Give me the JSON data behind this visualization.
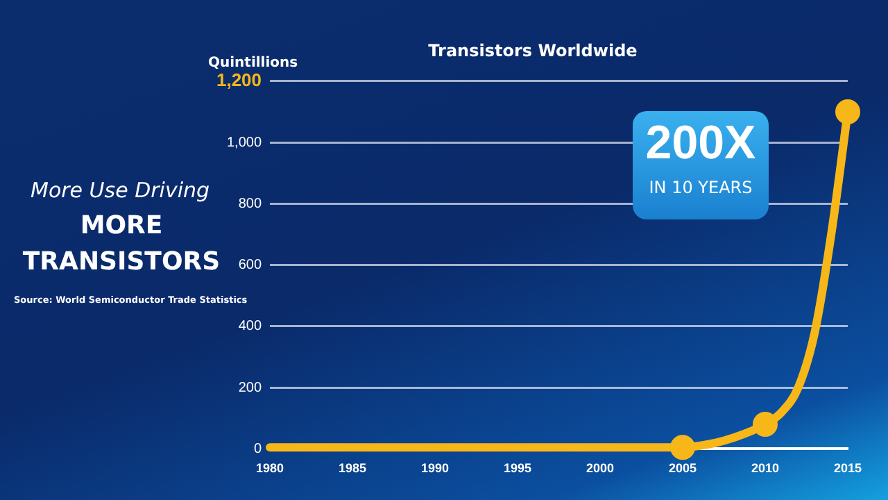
{
  "chart_data": {
    "type": "line",
    "title": "Transistors Worldwide",
    "ylabel": "Quintillions",
    "annotations": [
      "More Use Driving",
      "MORE TRANSISTORS",
      "Source: World Semiconductor Trade Statistics",
      "200X",
      "IN 10 YEARS"
    ],
    "x": [
      1980,
      1985,
      1990,
      1995,
      2000,
      2005,
      2007,
      2008,
      2010,
      2011,
      2012,
      2013,
      2014,
      2015
    ],
    "series": [
      {
        "marker": "none",
        "color": "#f7b718",
        "values": [
          5,
          5,
          5,
          5,
          5,
          5,
          20,
          35,
          80,
          120,
          200,
          380,
          700,
          1100
        ]
      },
      {
        "type": "scatter",
        "marker": "circle",
        "color": "#f7b718",
        "x": [
          2005,
          2010,
          2015
        ],
        "values": [
          5,
          80,
          1100
        ]
      }
    ],
    "xlim": [
      1980,
      2015
    ],
    "xticks": [
      1980,
      1985,
      1990,
      1995,
      2000,
      2005,
      2010,
      2015
    ],
    "ylim": [
      0,
      1200
    ],
    "yticks": [
      0,
      200,
      400,
      600,
      800,
      {
        "value": 1000,
        "label": "1,000"
      },
      {
        "value": 1200,
        "label": "1,200"
      }
    ],
    "grid": "y",
    "legend": false
  }
}
